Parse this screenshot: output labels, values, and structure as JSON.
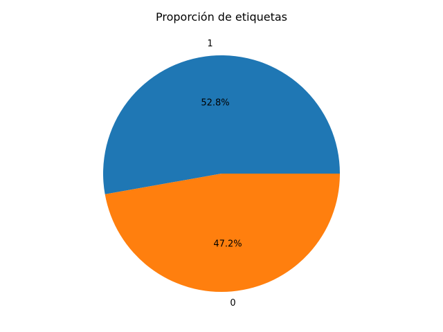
{
  "chart_data": {
    "type": "pie",
    "title": "Proporción de etiquetas",
    "categories": [
      "1",
      "0"
    ],
    "values": [
      52.8,
      47.2
    ],
    "pct_labels": [
      "52.8%",
      "47.2%"
    ],
    "colors": [
      "#1f77b4",
      "#ff7f0e"
    ],
    "start_angle_deg": 0,
    "direction": "counterclockwise",
    "legend": "none"
  }
}
